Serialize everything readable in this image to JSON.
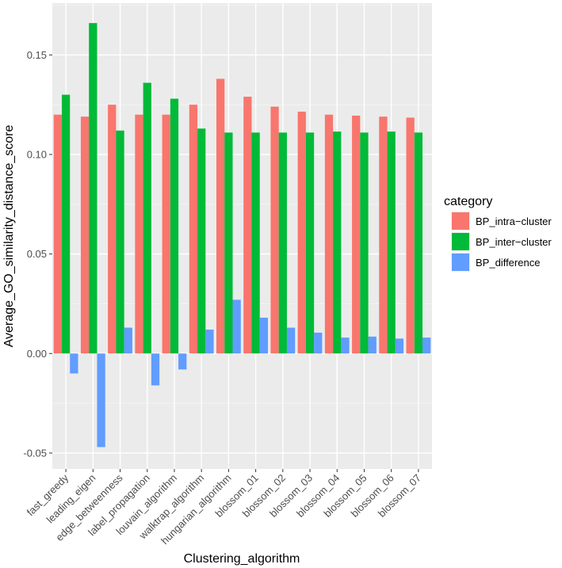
{
  "chart_data": {
    "type": "bar",
    "xlabel": "Clustering_algorithm",
    "ylabel": "Average_GO_similarity_distance_score",
    "ylim": [
      -0.058,
      0.176
    ],
    "yticks": [
      -0.05,
      0.0,
      0.05,
      0.1,
      0.15
    ],
    "ytick_labels": [
      "-0.05",
      "0.00",
      "0.05",
      "0.10",
      "0.15"
    ],
    "grid": true,
    "legend_position": "right",
    "legend_title": "category",
    "categories": [
      "fast_greedy",
      "leading_eigen",
      "edge_betweenness",
      "label_propagation",
      "louvain_algorithm",
      "walktrap_algorithm",
      "hungarian_algorithm",
      "blossom_01",
      "blossom_02",
      "blossom_03",
      "blossom_04",
      "blossom_05",
      "blossom_06",
      "blossom_07"
    ],
    "series": [
      {
        "name": "BP_intra−cluster",
        "color": "#F8766D",
        "values": [
          0.12,
          0.119,
          0.125,
          0.12,
          0.12,
          0.125,
          0.138,
          0.129,
          0.124,
          0.1215,
          0.12,
          0.1195,
          0.119,
          0.1185
        ]
      },
      {
        "name": "BP_inter−cluster",
        "color": "#00BA38",
        "values": [
          0.13,
          0.166,
          0.112,
          0.136,
          0.128,
          0.113,
          0.111,
          0.111,
          0.111,
          0.111,
          0.1115,
          0.111,
          0.1115,
          0.111
        ]
      },
      {
        "name": "BP_difference",
        "color": "#619CFF",
        "values": [
          -0.01,
          -0.047,
          0.013,
          -0.016,
          -0.008,
          0.012,
          0.027,
          0.018,
          0.013,
          0.0105,
          0.008,
          0.0085,
          0.0075,
          0.008
        ]
      }
    ]
  },
  "colors": {
    "panel_background": "#EBEBEB",
    "grid_major": "#FFFFFF",
    "text": "#4D4D4D"
  }
}
